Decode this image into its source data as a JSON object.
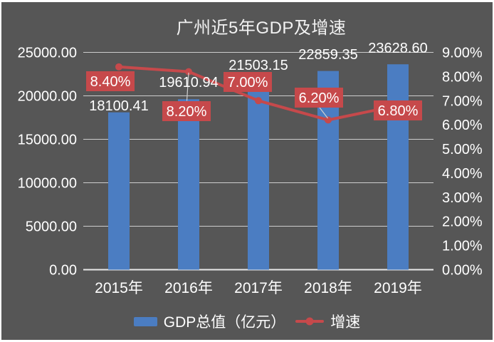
{
  "window": {
    "frame_color": "#ffffff",
    "canvas_color": "#565656",
    "text_color": "#ffffff"
  },
  "chart_data": {
    "type": "bar",
    "title": "广州近5年GDP及增速",
    "categories": [
      "2015年",
      "2016年",
      "2017年",
      "2018年",
      "2019年"
    ],
    "series": [
      {
        "name": "GDP总值（亿元）",
        "chart": "bar",
        "axis": "left",
        "color": "#4b7dc2",
        "values": [
          18100.41,
          19610.94,
          21503.15,
          22859.35,
          23628.6
        ],
        "data_labels": [
          "18100.41",
          "19610.94",
          "21503.15",
          "22859.35",
          "23628.60"
        ],
        "label_color": "#ffffff"
      },
      {
        "name": "增速",
        "chart": "line",
        "axis": "right",
        "color": "#c6494b",
        "marker": "circle",
        "values": [
          8.4,
          8.2,
          7.0,
          6.2,
          6.8
        ],
        "data_labels": [
          "8.40%",
          "8.20%",
          "7.00%",
          "6.20%",
          "6.80%"
        ],
        "label_style": "red-box",
        "label_box_color": "#c6494b",
        "label_text_color": "#ffffff"
      }
    ],
    "left_axis": {
      "min": 0,
      "max": 25000,
      "step": 5000,
      "tick_labels": [
        "25000.00",
        "20000.00",
        "15000.00",
        "10000.00",
        "5000.00",
        "0.00"
      ]
    },
    "right_axis": {
      "min": 0,
      "max": 9,
      "step": 1,
      "tick_labels": [
        "9.00%",
        "8.00%",
        "7.00%",
        "6.00%",
        "5.00%",
        "4.00%",
        "3.00%",
        "2.00%",
        "1.00%",
        "0.00%"
      ]
    },
    "grid": true,
    "gridline_color": "#cdcdcd",
    "axis_line_color": "#e9e9e9",
    "leader_line_color": "#d0d0d0",
    "legend_position": "bottom",
    "legend": [
      {
        "label": "GDP总值（亿元）",
        "swatch": "bar"
      },
      {
        "label": "增速",
        "swatch": "line-marker"
      }
    ]
  }
}
